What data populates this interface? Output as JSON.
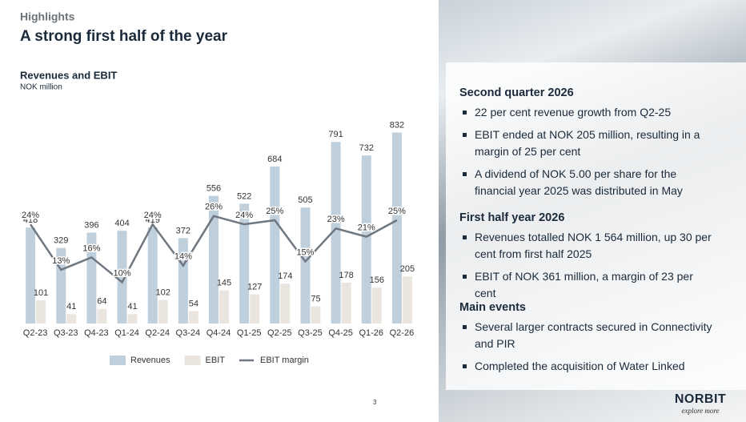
{
  "header": {
    "kicker": "Highlights",
    "title": "A strong first half of the year"
  },
  "chart_data": {
    "type": "bar",
    "title": "Revenues and EBIT",
    "subtitle": "NOK million",
    "categories": [
      "Q2-23",
      "Q3-23",
      "Q4-23",
      "Q1-24",
      "Q2-24",
      "Q3-24",
      "Q4-24",
      "Q1-25",
      "Q2-25",
      "Q3-25",
      "Q4-25",
      "Q1-26",
      "Q2-26"
    ],
    "series": [
      {
        "name": "Revenues",
        "color": "#bfd0dc",
        "values": [
          418,
          329,
          396,
          404,
          419,
          372,
          556,
          522,
          684,
          505,
          791,
          732,
          832
        ]
      },
      {
        "name": "EBIT",
        "color": "#ebe5df",
        "values": [
          101,
          41,
          64,
          41,
          102,
          54,
          145,
          127,
          174,
          75,
          178,
          156,
          205
        ]
      },
      {
        "name": "EBIT margin",
        "color": "#6f7780",
        "type": "line",
        "axis": "y2",
        "values": [
          24,
          13,
          16,
          10,
          24,
          14,
          26,
          24,
          25,
          15,
          23,
          21,
          25
        ],
        "value_labels": [
          "24%",
          "13%",
          "16%",
          "10%",
          "24%",
          "14%",
          "26%",
          "24%",
          "25%",
          "15%",
          "23%",
          "21%",
          "25%"
        ]
      }
    ],
    "ylim": [
      0,
      900
    ],
    "y2lim": [
      0,
      50
    ]
  },
  "page_number": "3",
  "panel": {
    "sections": [
      {
        "heading": "Second quarter 2026",
        "bullets": [
          "22 per cent revenue growth from Q2-25",
          "EBIT ended at NOK 205 million, resulting in a margin of 25 per cent",
          "A dividend of NOK 5.00 per share for the financial year 2025 was distributed in May"
        ]
      },
      {
        "heading": "First half year 2026",
        "bullets": [
          "Revenues totalled NOK 1 564 million, up 30 per cent from first half 2025",
          "EBIT of NOK 361 million, a margin of 23 per cent"
        ]
      },
      {
        "heading": "Main events",
        "bullets": [
          "Several larger contracts secured in Connectivity and PIR",
          "Completed the acquisition of Water Linked"
        ]
      }
    ]
  },
  "logo": {
    "name": "NORBIT",
    "tagline": "explore more"
  }
}
